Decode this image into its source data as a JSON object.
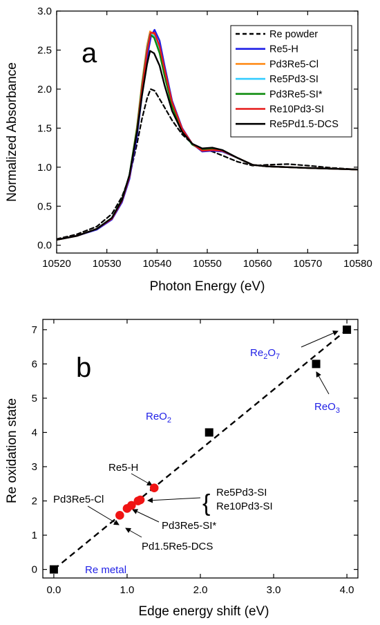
{
  "chart_data": [
    {
      "type": "line",
      "panel_label": "a",
      "xlabel": "Photon Energy (eV)",
      "ylabel": "Normalized Absorbance",
      "xlim": [
        10520,
        10580
      ],
      "ylim": [
        -0.1,
        3.0
      ],
      "xticks": [
        10520,
        10530,
        10540,
        10550,
        10560,
        10570,
        10580
      ],
      "yticks": [
        0.0,
        0.5,
        1.0,
        1.5,
        2.0,
        2.5,
        3.0
      ],
      "ytick_labels": [
        "0.0",
        "0.5",
        "1.0",
        "1.5",
        "2.0",
        "2.5",
        "3.0"
      ],
      "legend_position": "top-right",
      "series": [
        {
          "name": "Re powder",
          "color": "#000000",
          "dash": "dashed",
          "x": [
            10520,
            10524,
            10528,
            10531,
            10533,
            10534.5,
            10536,
            10537,
            10538,
            10538.7,
            10539.5,
            10541,
            10543,
            10545,
            10547,
            10549,
            10551,
            10553,
            10556,
            10559,
            10562,
            10566,
            10570,
            10575,
            10580
          ],
          "y": [
            0.08,
            0.14,
            0.24,
            0.4,
            0.62,
            0.88,
            1.3,
            1.62,
            1.88,
            2.0,
            1.98,
            1.82,
            1.6,
            1.42,
            1.3,
            1.23,
            1.2,
            1.15,
            1.07,
            1.02,
            1.03,
            1.04,
            1.02,
            0.99,
            0.97
          ]
        },
        {
          "name": "Re5-H",
          "color": "#1f1fe6",
          "dash": "solid",
          "x": [
            10520,
            10524,
            10528,
            10531,
            10533,
            10534.5,
            10536,
            10537,
            10538,
            10538.8,
            10539.5,
            10540.5,
            10541.5,
            10543,
            10545,
            10547,
            10549,
            10551,
            10553,
            10556,
            10559,
            10562,
            10566,
            10570,
            10575,
            10580
          ],
          "y": [
            0.07,
            0.12,
            0.2,
            0.33,
            0.55,
            0.85,
            1.4,
            1.92,
            2.4,
            2.68,
            2.76,
            2.62,
            2.3,
            1.85,
            1.5,
            1.3,
            1.2,
            1.21,
            1.2,
            1.12,
            1.03,
            1.01,
            1.0,
            0.99,
            0.98,
            0.97
          ]
        },
        {
          "name": "Pd3Re5-Cl",
          "color": "#ff8c1a",
          "dash": "solid",
          "x": [
            10520,
            10524,
            10528,
            10531,
            10533,
            10534.5,
            10536,
            10537,
            10538,
            10538.6,
            10539.4,
            10540.5,
            10541.5,
            10543,
            10545,
            10547,
            10549,
            10551,
            10553,
            10556,
            10559,
            10562,
            10566,
            10570,
            10575,
            10580
          ],
          "y": [
            0.07,
            0.12,
            0.21,
            0.35,
            0.58,
            0.9,
            1.52,
            2.08,
            2.56,
            2.74,
            2.7,
            2.5,
            2.2,
            1.8,
            1.48,
            1.3,
            1.22,
            1.23,
            1.21,
            1.12,
            1.03,
            1.01,
            1.0,
            0.99,
            0.98,
            0.97
          ]
        },
        {
          "name": "Re5Pd3-SI",
          "color": "#33ccff",
          "dash": "solid",
          "x": [
            10520,
            10524,
            10528,
            10531,
            10533,
            10534.5,
            10536,
            10537,
            10538,
            10538.6,
            10539.4,
            10540.5,
            10541.5,
            10543,
            10545,
            10547,
            10549,
            10551,
            10553,
            10556,
            10559,
            10562,
            10566,
            10570,
            10575,
            10580
          ],
          "y": [
            0.07,
            0.12,
            0.21,
            0.35,
            0.58,
            0.9,
            1.5,
            2.05,
            2.52,
            2.71,
            2.68,
            2.48,
            2.18,
            1.79,
            1.47,
            1.29,
            1.22,
            1.23,
            1.21,
            1.12,
            1.03,
            1.01,
            1.0,
            0.99,
            0.98,
            0.97
          ]
        },
        {
          "name": "Pd3Re5-SI*",
          "color": "#0a8a0a",
          "dash": "solid",
          "x": [
            10520,
            10524,
            10528,
            10531,
            10533,
            10534.5,
            10536,
            10537,
            10538,
            10538.6,
            10539.4,
            10540.5,
            10541.5,
            10543,
            10545,
            10547,
            10549,
            10551,
            10553,
            10556,
            10559,
            10562,
            10566,
            10570,
            10575,
            10580
          ],
          "y": [
            0.07,
            0.12,
            0.21,
            0.35,
            0.58,
            0.9,
            1.5,
            2.04,
            2.5,
            2.7,
            2.66,
            2.46,
            2.17,
            1.78,
            1.47,
            1.29,
            1.22,
            1.23,
            1.21,
            1.12,
            1.03,
            1.01,
            1.0,
            0.99,
            0.98,
            0.97
          ]
        },
        {
          "name": "Re10Pd3-SI",
          "color": "#e61919",
          "dash": "solid",
          "x": [
            10520,
            10524,
            10528,
            10531,
            10533,
            10534.5,
            10536,
            10537,
            10538,
            10538.7,
            10539.5,
            10540.5,
            10541.5,
            10543,
            10545,
            10547,
            10549,
            10551,
            10553,
            10556,
            10559,
            10562,
            10566,
            10570,
            10575,
            10580
          ],
          "y": [
            0.07,
            0.12,
            0.21,
            0.34,
            0.57,
            0.88,
            1.46,
            2.0,
            2.48,
            2.72,
            2.72,
            2.55,
            2.25,
            1.83,
            1.49,
            1.3,
            1.21,
            1.22,
            1.21,
            1.12,
            1.03,
            1.01,
            1.0,
            0.99,
            0.98,
            0.97
          ]
        },
        {
          "name": "Re5Pd1.5-DCS",
          "color": "#000000",
          "dash": "solid",
          "x": [
            10520,
            10524,
            10528,
            10531,
            10533,
            10534.5,
            10536,
            10537,
            10538,
            10538.6,
            10539.4,
            10540.5,
            10541.5,
            10543,
            10545,
            10547,
            10549,
            10551,
            10553,
            10556,
            10559,
            10562,
            10566,
            10570,
            10575,
            10580
          ],
          "y": [
            0.07,
            0.12,
            0.21,
            0.35,
            0.58,
            0.9,
            1.45,
            1.92,
            2.32,
            2.49,
            2.46,
            2.3,
            2.05,
            1.72,
            1.45,
            1.3,
            1.24,
            1.25,
            1.22,
            1.12,
            1.03,
            1.01,
            1.0,
            0.99,
            0.98,
            0.97
          ]
        }
      ]
    },
    {
      "type": "scatter",
      "panel_label": "b",
      "xlabel": "Edge energy shift (eV)",
      "ylabel": "Re oxidation state",
      "xlim": [
        -0.15,
        4.15
      ],
      "ylim": [
        -0.25,
        7.3
      ],
      "xticks": [
        0.0,
        1.0,
        2.0,
        3.0,
        4.0
      ],
      "xtick_labels": [
        "0.0",
        "1.0",
        "2.0",
        "3.0",
        "4.0"
      ],
      "yticks": [
        0,
        1,
        2,
        3,
        4,
        5,
        6,
        7
      ],
      "ytick_labels": [
        "0",
        "1",
        "2",
        "3",
        "4",
        "5",
        "6",
        "7"
      ],
      "fit_line": {
        "x": [
          0.0,
          4.0
        ],
        "y": [
          0.0,
          7.0
        ],
        "color": "#000000",
        "dash": "dashed"
      },
      "references": [
        {
          "label": "Re metal",
          "x": 0.0,
          "y": 0.0,
          "color": "#1f1fe6"
        },
        {
          "label": "ReO",
          "sub": "2",
          "x": 2.12,
          "y": 4.0,
          "color": "#1f1fe6"
        },
        {
          "label": "ReO",
          "sub": "3",
          "x": 3.58,
          "y": 6.0,
          "color": "#1f1fe6"
        },
        {
          "label": "Re",
          "sub": "2",
          "label2": "O",
          "sub2": "7",
          "x": 4.0,
          "y": 7.0,
          "color": "#1f1fe6"
        }
      ],
      "samples": [
        {
          "label": "Re5-H",
          "x": 1.37,
          "y": 2.38
        },
        {
          "label": "Pd3Re5-Cl",
          "x": 1.0,
          "y": 1.78
        },
        {
          "label": "Pd3Re5-SI*",
          "x": 1.06,
          "y": 1.87
        },
        {
          "label": "Re5Pd3-SI",
          "x": 1.15,
          "y": 2.0
        },
        {
          "label": "Re10Pd3-SI",
          "x": 1.18,
          "y": 2.03
        },
        {
          "label": "Pd1.5Re5-DCS",
          "x": 0.9,
          "y": 1.58
        }
      ],
      "bracket_labels": [
        "Re5Pd3-SI",
        "Re10Pd3-SI"
      ]
    }
  ]
}
